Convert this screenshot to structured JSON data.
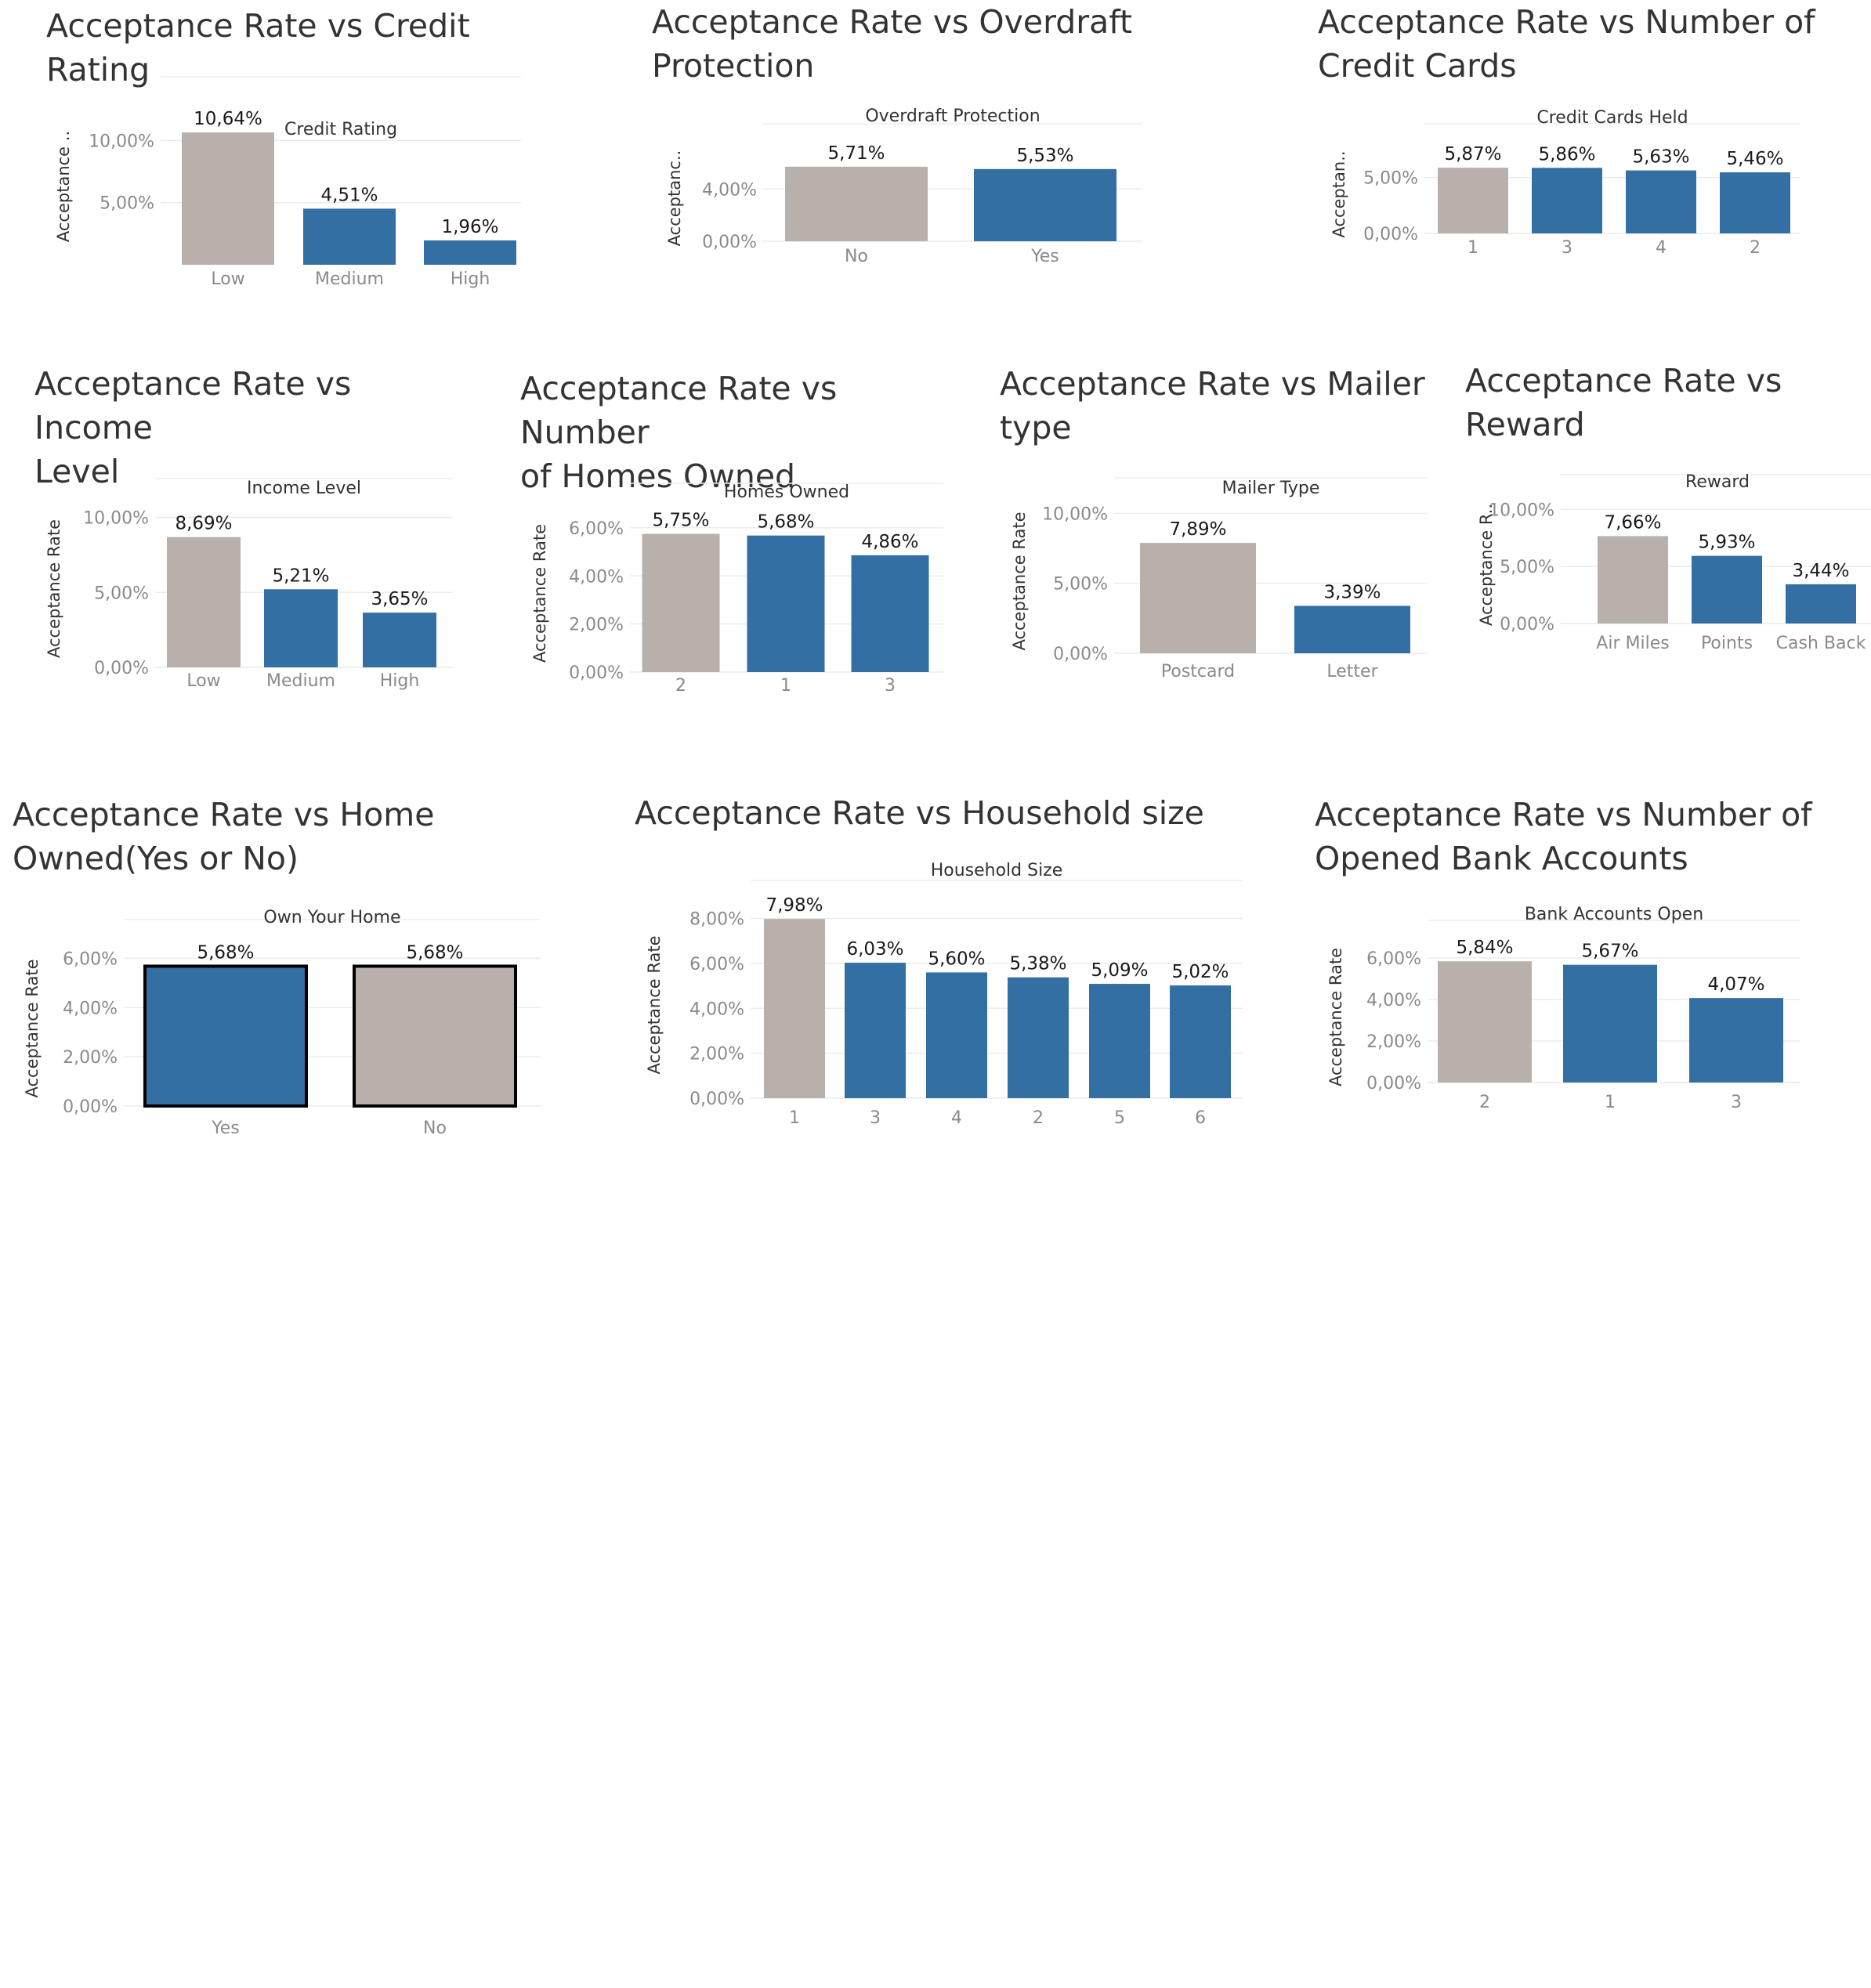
{
  "colors": {
    "highlight": "#b8b0ab",
    "primary": "#336fa3",
    "outline": "#000000"
  },
  "chart_data": [
    {
      "type": "bar",
      "title": "Acceptance Rate vs Credit\nRating",
      "xlabel": "Credit Rating",
      "ylabel": "Acceptance ..",
      "categories": [
        "Low",
        "Medium",
        "High"
      ],
      "values": [
        10.64,
        4.51,
        1.96
      ],
      "data_labels": [
        "10,64%",
        "4,51%",
        "1,96%"
      ],
      "yticks": [
        5,
        10
      ],
      "ytick_labels": [
        "5,00%",
        "10,00%"
      ],
      "ylim": [
        0,
        12.6
      ],
      "grid": true
    },
    {
      "type": "bar",
      "title": "Acceptance Rate vs Overdraft\nProtection",
      "xlabel": "Overdraft Protection",
      "ylabel": "Acceptanc..",
      "categories": [
        "No",
        "Yes"
      ],
      "values": [
        5.71,
        5.53
      ],
      "data_labels": [
        "5,71%",
        "5,53%"
      ],
      "yticks": [
        0,
        4
      ],
      "ytick_labels": [
        "0,00%",
        "4,00%"
      ],
      "ylim": [
        0,
        6.6
      ],
      "grid": true
    },
    {
      "type": "bar",
      "title": "Acceptance Rate vs Number of\nCredit Cards",
      "xlabel": "Credit Cards Held",
      "ylabel": "Acceptan..",
      "categories": [
        "1",
        "3",
        "4",
        "2"
      ],
      "values": [
        5.87,
        5.86,
        5.63,
        5.46
      ],
      "data_labels": [
        "5,87%",
        "5,86%",
        "5,63%",
        "5,46%"
      ],
      "yticks": [
        0,
        5
      ],
      "ytick_labels": [
        "0,00%",
        "5,00%"
      ],
      "ylim": [
        0,
        7.0
      ],
      "grid": true
    },
    {
      "type": "bar",
      "title": "Acceptance Rate vs Income\nLevel",
      "xlabel": "Income Level",
      "ylabel": "Acceptance Rate",
      "categories": [
        "Low",
        "Medium",
        "High"
      ],
      "values": [
        8.69,
        5.21,
        3.65
      ],
      "data_labels": [
        "8,69%",
        "5,21%",
        "3,65%"
      ],
      "yticks": [
        0,
        5,
        10
      ],
      "ytick_labels": [
        "0,00%",
        "5,00%",
        "10,00%"
      ],
      "ylim": [
        0,
        10.5
      ],
      "grid": true
    },
    {
      "type": "bar",
      "title": "Acceptance Rate vs Number\nof Homes Owned",
      "xlabel": "Homes Owned",
      "ylabel": "Acceptance Rate",
      "categories": [
        "2",
        "1",
        "3"
      ],
      "values": [
        5.75,
        5.68,
        4.86
      ],
      "data_labels": [
        "5,75%",
        "5,68%",
        "4,86%"
      ],
      "yticks": [
        0,
        2,
        4,
        6
      ],
      "ytick_labels": [
        "0,00%",
        "2,00%",
        "4,00%",
        "6,00%"
      ],
      "ylim": [
        0,
        6.55
      ],
      "grid": true
    },
    {
      "type": "bar",
      "title": "Acceptance Rate vs Mailer\ntype",
      "xlabel": "Mailer Type",
      "ylabel": "Acceptance Rate",
      "categories": [
        "Postcard",
        "Letter"
      ],
      "values": [
        7.89,
        3.39
      ],
      "data_labels": [
        "7,89%",
        "3,39%"
      ],
      "yticks": [
        0,
        5,
        10
      ],
      "ytick_labels": [
        "0,00%",
        "5,00%",
        "10,00%"
      ],
      "ylim": [
        0,
        10.3
      ],
      "grid": true
    },
    {
      "type": "bar",
      "title": "Acceptance Rate vs\nReward",
      "xlabel": "Reward",
      "ylabel": "Acceptance R..",
      "categories": [
        "Air Miles",
        "Points",
        "Cash Back"
      ],
      "values": [
        7.66,
        5.93,
        3.44
      ],
      "data_labels": [
        "7,66%",
        "5,93%",
        "3,44%"
      ],
      "yticks": [
        0,
        5,
        10
      ],
      "ytick_labels": [
        "0,00%",
        "5,00%",
        "10,00%"
      ],
      "ylim": [
        0,
        10.3
      ],
      "grid": true
    },
    {
      "type": "bar",
      "title": "Acceptance Rate vs Home\nOwned(Yes or No)",
      "xlabel": "Own Your Home",
      "ylabel": "Acceptance Rate",
      "categories": [
        "Yes",
        "No"
      ],
      "values": [
        5.68,
        5.68
      ],
      "data_labels": [
        "5,68%",
        "5,68%"
      ],
      "yticks": [
        0,
        2,
        4,
        6
      ],
      "ytick_labels": [
        "0,00%",
        "2,00%",
        "4,00%",
        "6,00%"
      ],
      "ylim": [
        0,
        6.3
      ],
      "grid": true
    },
    {
      "type": "bar",
      "title": "Acceptance Rate vs Household size",
      "xlabel": "Household Size",
      "ylabel": "Acceptance Rate",
      "categories": [
        "1",
        "3",
        "4",
        "2",
        "5",
        "6"
      ],
      "values": [
        7.98,
        6.03,
        5.6,
        5.38,
        5.09,
        5.02
      ],
      "data_labels": [
        "7,98%",
        "6,03%",
        "5,60%",
        "5,38%",
        "5,09%",
        "5,02%"
      ],
      "yticks": [
        0,
        2,
        4,
        6,
        8
      ],
      "ytick_labels": [
        "0,00%",
        "2,00%",
        "4,00%",
        "6,00%",
        "8,00%"
      ],
      "ylim": [
        0,
        8.3
      ],
      "grid": true
    },
    {
      "type": "bar",
      "title": "Acceptance Rate vs Number of\nOpened Bank Accounts",
      "xlabel": "Bank Accounts Open",
      "ylabel": "Acceptance Rate",
      "categories": [
        "2",
        "1",
        "3"
      ],
      "values": [
        5.84,
        5.67,
        4.07
      ],
      "data_labels": [
        "5,84%",
        "5,67%",
        "4,07%"
      ],
      "yticks": [
        0,
        2,
        4,
        6
      ],
      "ytick_labels": [
        "0,00%",
        "2,00%",
        "4,00%",
        "6,00%"
      ],
      "ylim": [
        0,
        6.3
      ],
      "grid": true
    }
  ]
}
